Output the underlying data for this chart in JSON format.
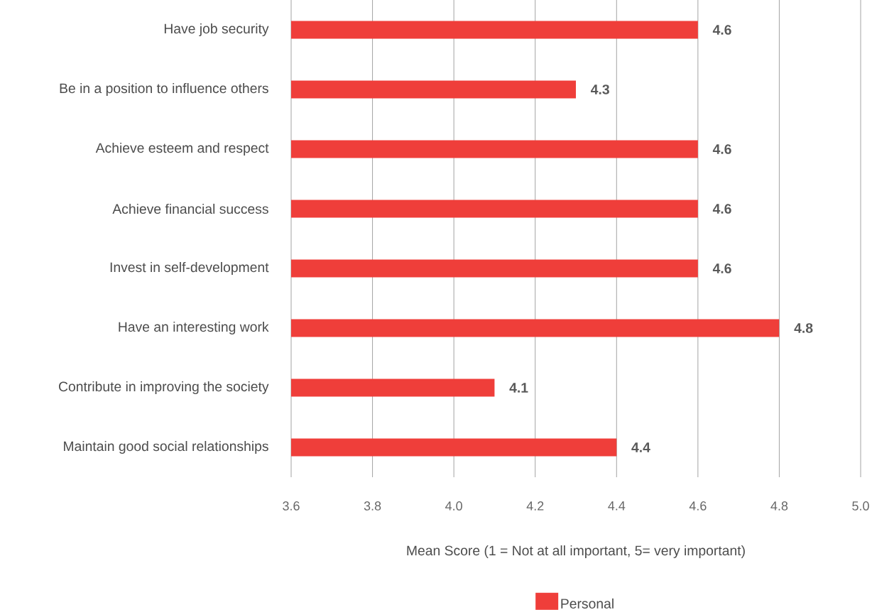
{
  "chart_data": {
    "type": "bar",
    "orientation": "horizontal",
    "categories": [
      "Have job security",
      "Be in a position to influence others",
      "Achieve esteem and respect",
      "Achieve financial success",
      "Invest in self-development",
      "Have an interesting work",
      "Contribute in improving the society",
      "Maintain good social relationships"
    ],
    "series": [
      {
        "name": "Personal",
        "color": "#ef3e3a",
        "values": [
          4.6,
          4.3,
          4.6,
          4.6,
          4.6,
          4.8,
          4.1,
          4.4
        ]
      }
    ],
    "xlim": [
      3.6,
      5.0
    ],
    "xticks": [
      3.6,
      3.8,
      {
        "value": 4.0,
        "label": "4.0"
      },
      4.2,
      4.4,
      4.6,
      4.8,
      {
        "value": 5.0,
        "label": "5.0"
      }
    ],
    "xlabel": "Mean Score (1 = Not at all important, 5= very important)",
    "grid": "x",
    "legend": "bottom",
    "data_labels": true
  }
}
